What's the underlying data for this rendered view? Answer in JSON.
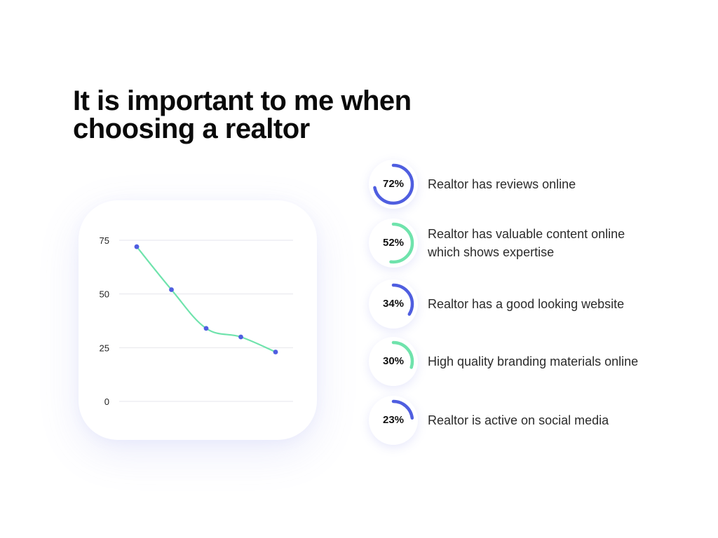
{
  "title": "It is important to me when choosing a realtor",
  "colors": {
    "blue": "#4f5ee0",
    "green": "#6fe3ac",
    "grid": "#e6e6ec"
  },
  "stats": [
    {
      "value": "72%",
      "percent": 72,
      "label": "Realtor has reviews online",
      "color": "blue"
    },
    {
      "value": "52%",
      "percent": 52,
      "label": "Realtor has valuable content online which shows expertise",
      "color": "green"
    },
    {
      "value": "34%",
      "percent": 34,
      "label": "Realtor has a good looking website",
      "color": "blue"
    },
    {
      "value": "30%",
      "percent": 30,
      "label": "High quality branding materials online",
      "color": "green"
    },
    {
      "value": "23%",
      "percent": 23,
      "label": "Realtor is active on social media",
      "color": "blue"
    }
  ],
  "chart_data": {
    "type": "line",
    "x": [
      1,
      2,
      3,
      4,
      5
    ],
    "values": [
      72,
      52,
      34,
      30,
      23
    ],
    "ylim": [
      0,
      75
    ],
    "yticks": [
      "75",
      "50",
      "25",
      "0"
    ],
    "ytick_values": [
      75,
      50,
      25,
      0
    ],
    "xlabel": "",
    "ylabel": "",
    "grid": true,
    "line_color": "#6fe3ac",
    "marker_color": "#4f5ee0"
  }
}
